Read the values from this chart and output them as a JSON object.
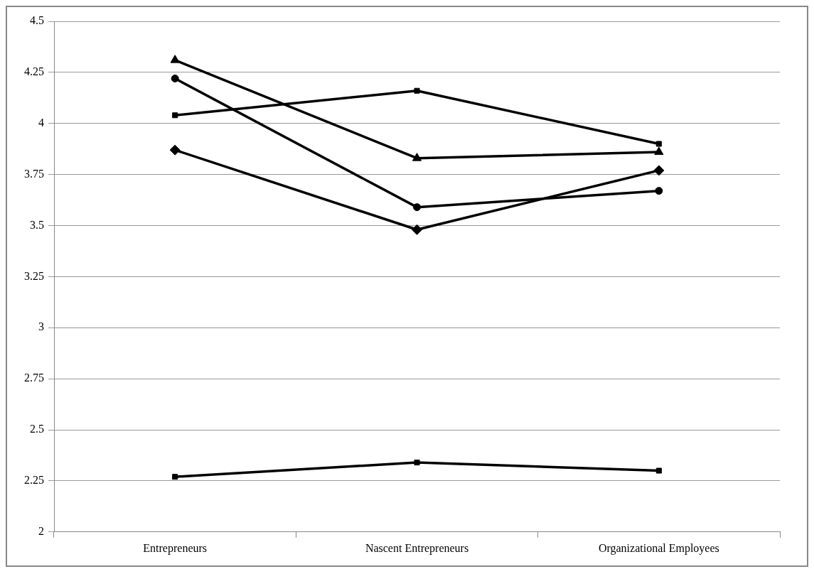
{
  "chart_data": {
    "type": "line",
    "categories": [
      "Entrepreneurs",
      "Nascent Entrepreneurs",
      "Organizational Employees"
    ],
    "series": [
      {
        "color": "#000000",
        "marker": "triangle",
        "values": [
          4.31,
          3.83,
          3.86
        ]
      },
      {
        "color": "#000000",
        "marker": "circle",
        "values": [
          4.22,
          3.59,
          3.67
        ]
      },
      {
        "color": "#000000",
        "marker": "square",
        "values": [
          4.04,
          4.16,
          3.9
        ]
      },
      {
        "color": "#000000",
        "marker": "diamond",
        "values": [
          3.87,
          3.48,
          3.77
        ]
      },
      {
        "color": "#000000",
        "marker": "square",
        "values": [
          2.27,
          2.34,
          2.3
        ]
      }
    ],
    "ylim": [
      2,
      4.5
    ],
    "yticks": [
      2,
      2.25,
      2.5,
      2.75,
      3,
      3.25,
      3.5,
      3.75,
      4,
      4.25,
      4.5
    ],
    "grid": "y",
    "legend": false,
    "line_style": "solid"
  }
}
